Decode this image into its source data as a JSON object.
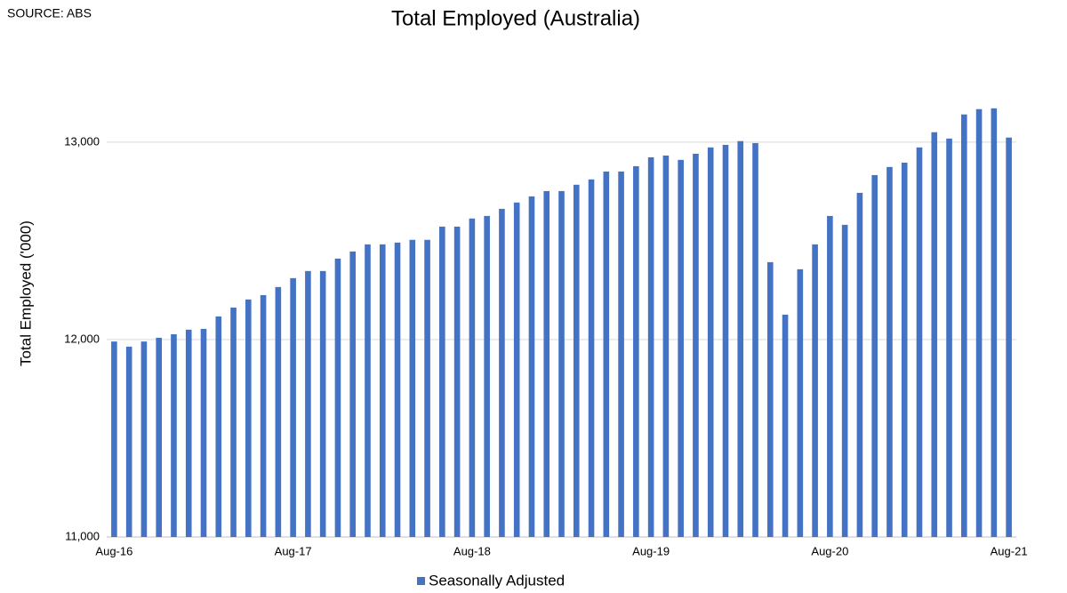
{
  "source": "SOURCE: ABS",
  "chart_data": {
    "type": "bar",
    "title": "Total Employed (Australia)",
    "y_label": "Total Employed ('000)",
    "categories": [
      "Aug-16",
      null,
      null,
      null,
      null,
      null,
      null,
      null,
      null,
      null,
      null,
      null,
      "Aug-17",
      null,
      null,
      null,
      null,
      null,
      null,
      null,
      null,
      null,
      null,
      null,
      "Aug-18",
      null,
      null,
      null,
      null,
      null,
      null,
      null,
      null,
      null,
      null,
      null,
      "Aug-19",
      null,
      null,
      null,
      null,
      null,
      null,
      null,
      null,
      null,
      null,
      null,
      "Aug-20",
      null,
      null,
      null,
      null,
      null,
      null,
      null,
      null,
      null,
      null,
      null,
      "Aug-21"
    ],
    "series": [
      {
        "name": "Seasonally Adjusted",
        "color": "#4472c4",
        "values": [
          11990,
          11964,
          11990,
          12009,
          12027,
          12050,
          12054,
          12117,
          12162,
          12203,
          12225,
          12266,
          12311,
          12347,
          12347,
          12410,
          12446,
          12482,
          12482,
          12491,
          12505,
          12505,
          12572,
          12572,
          12613,
          12626,
          12662,
          12694,
          12725,
          12752,
          12752,
          12784,
          12811,
          12851,
          12851,
          12878,
          12923,
          12932,
          12910,
          12941,
          12973,
          12986,
          13005,
          12995,
          12392,
          12126,
          12356,
          12482,
          12626,
          12581,
          12743,
          12833,
          12874,
          12896,
          12973,
          13050,
          13018,
          13140,
          13167,
          13171,
          13023
        ]
      }
    ],
    "ylim": [
      11000,
      13400
    ],
    "yticks": [
      {
        "value": 11000,
        "label": "11,000"
      },
      {
        "value": 12000,
        "label": "12,000"
      },
      {
        "value": 13000,
        "label": "13,000"
      }
    ],
    "grid": true,
    "legend": "bottom"
  }
}
